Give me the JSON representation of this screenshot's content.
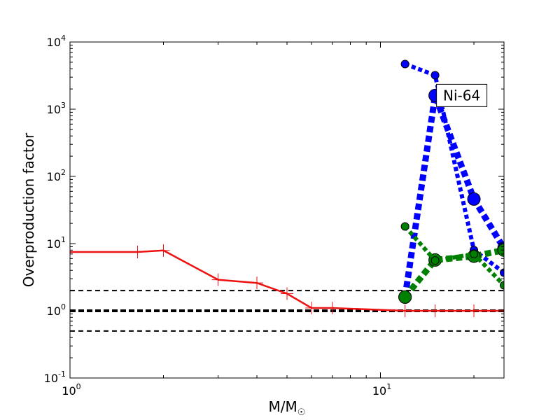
{
  "colors": {
    "red": "#ee1111",
    "blue": "#0000ff",
    "green": "#008000",
    "black": "#000000"
  },
  "chart_data": {
    "type": "line",
    "xscale": "log",
    "yscale": "log",
    "xlim": [
      1,
      25
    ],
    "ylim": [
      0.1,
      10000
    ],
    "xlabel": "M/M",
    "xlabel_symbol": "☉",
    "ylabel": "Overproduction factor",
    "x_ticks": [
      {
        "value": 1,
        "base": "10",
        "exp": "0"
      },
      {
        "value": 10,
        "base": "10",
        "exp": "1"
      }
    ],
    "y_ticks": [
      {
        "value": 0.1,
        "base": "10",
        "exp": "-1"
      },
      {
        "value": 1,
        "base": "10",
        "exp": "0"
      },
      {
        "value": 10,
        "base": "10",
        "exp": "1"
      },
      {
        "value": 100,
        "base": "10",
        "exp": "2"
      },
      {
        "value": 1000,
        "base": "10",
        "exp": "3"
      },
      {
        "value": 10000,
        "base": "10",
        "exp": "4"
      }
    ],
    "reference_lines": [
      {
        "y": 2.0,
        "style": "dashed",
        "weight": "normal",
        "color": "#000000"
      },
      {
        "y": 1.0,
        "style": "dashed",
        "weight": "heavy",
        "color": "#000000"
      },
      {
        "y": 0.5,
        "style": "dashed",
        "weight": "normal",
        "color": "#000000"
      }
    ],
    "series": [
      {
        "color": "#ee1111",
        "line": "solid",
        "marker": "plus",
        "x": [
          1.0,
          1.65,
          2.0,
          3.0,
          4.0,
          5.0,
          6.0,
          7.0,
          12.0,
          15.0,
          20.0,
          25.0
        ],
        "y": [
          7.5,
          7.5,
          7.9,
          2.9,
          2.6,
          1.8,
          1.1,
          1.1,
          1.0,
          1.0,
          1.0,
          1.0
        ]
      },
      {
        "color": "#0000ff",
        "line": "dotted-heavy",
        "marker": "circle-large",
        "x": [
          12.0,
          15.0,
          20.0,
          25.0
        ],
        "y": [
          1.6,
          1600,
          46,
          8.5
        ]
      },
      {
        "color": "#0000ff",
        "line": "dotted",
        "marker": "circle-small",
        "x": [
          12.0,
          15.0,
          20.0,
          25.0
        ],
        "y": [
          4700,
          3200,
          8.0,
          3.7
        ]
      },
      {
        "color": "#008000",
        "line": "dotted-heavy",
        "marker": "circle-large",
        "x": [
          12.0,
          15.0,
          20.0,
          25.0
        ],
        "y": [
          1.6,
          5.7,
          6.5,
          8.0
        ]
      },
      {
        "color": "#008000",
        "line": "dotted",
        "marker": "circle-small",
        "x": [
          12.0,
          15.0,
          20.0,
          25.0
        ],
        "y": [
          18,
          5.6,
          7.0,
          2.4
        ]
      }
    ],
    "annotation": {
      "text": "Ni-64",
      "x": 15.0,
      "y": 1600
    },
    "grid": false
  }
}
